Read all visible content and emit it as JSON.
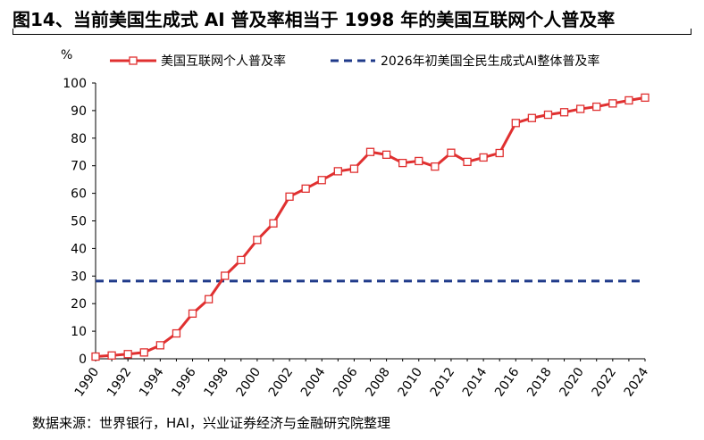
{
  "title": "图14、当前美国生成式 AI 普及率相当于 1998 年的美国互联网个人普及率",
  "source": "数据来源：世界银行，HAI，兴业证券经济与金融研究院整理",
  "chart_data": {
    "type": "line",
    "ylabel": "%",
    "ylim": [
      0,
      100
    ],
    "yticks": [
      0,
      10,
      20,
      30,
      40,
      50,
      60,
      70,
      80,
      90,
      100
    ],
    "xlim": [
      1990,
      2024
    ],
    "xticks": [
      1990,
      1992,
      1994,
      1996,
      1998,
      2000,
      2002,
      2004,
      2006,
      2008,
      2010,
      2012,
      2014,
      2016,
      2018,
      2020,
      2022,
      2024
    ],
    "legend_position": "top",
    "series": [
      {
        "name": "美国互联网个人普及率",
        "color": "#e03030",
        "marker": "square",
        "x": [
          1990,
          1991,
          1992,
          1993,
          1994,
          1995,
          1996,
          1997,
          1998,
          1999,
          2000,
          2001,
          2002,
          2003,
          2004,
          2005,
          2006,
          2007,
          2008,
          2009,
          2010,
          2011,
          2012,
          2013,
          2014,
          2015,
          2016,
          2017,
          2018,
          2019,
          2020,
          2021,
          2022,
          2023,
          2024
        ],
        "y": [
          0.8,
          1.2,
          1.7,
          2.3,
          4.9,
          9.2,
          16.4,
          21.6,
          30.1,
          35.8,
          43.1,
          49.1,
          58.8,
          61.7,
          64.8,
          68.0,
          68.9,
          75.0,
          74.0,
          71.0,
          71.7,
          69.7,
          74.7,
          71.4,
          73.0,
          74.6,
          85.5,
          87.3,
          88.5,
          89.4,
          90.6,
          91.4,
          92.6,
          93.7,
          94.7
        ]
      },
      {
        "name": "2026年初美国全民生成式AI整体普及率",
        "color": "#1f3a8a",
        "style": "dashed",
        "x": [
          1990,
          2024
        ],
        "y": [
          28.2,
          28.2
        ]
      }
    ]
  }
}
